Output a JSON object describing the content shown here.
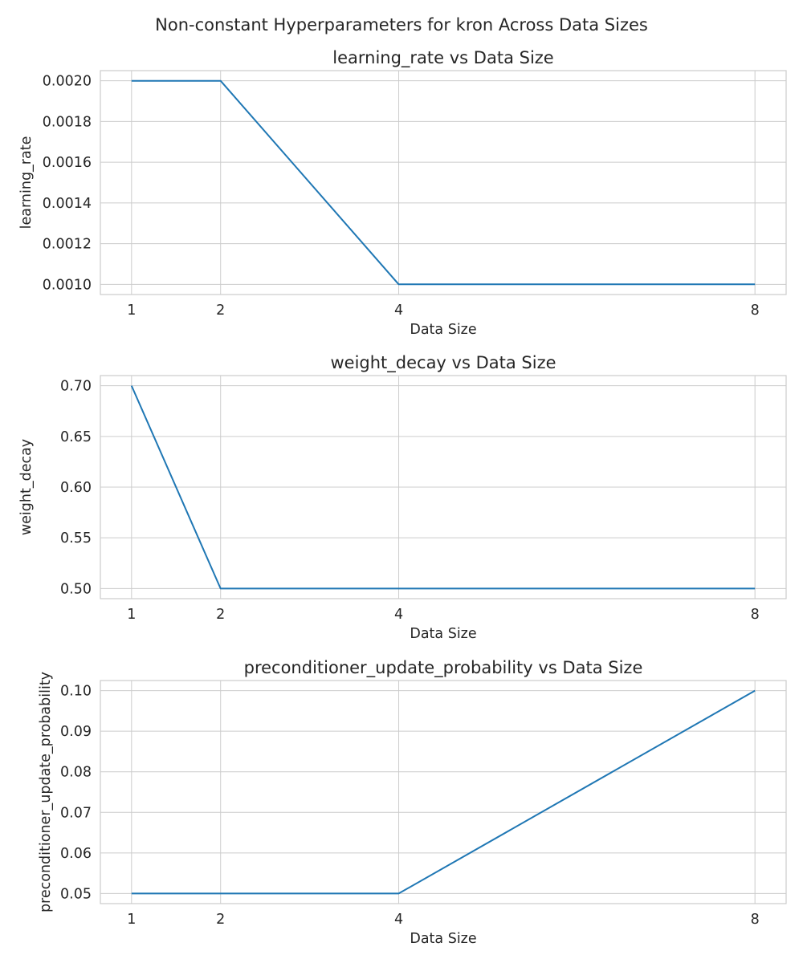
{
  "figure": {
    "suptitle": "Non-constant Hyperparameters for kron Across Data Sizes"
  },
  "style": {
    "line_color": "#1f77b4",
    "grid_color": "#cccccc",
    "text_color": "#262626"
  },
  "chart_data": [
    {
      "type": "line",
      "title": "learning_rate vs Data Size",
      "xlabel": "Data Size",
      "ylabel": "learning_rate",
      "x": [
        1,
        2,
        4,
        8
      ],
      "xticks": [
        1,
        2,
        4,
        8
      ],
      "xtick_labels": [
        "1",
        "2",
        "4",
        "8"
      ],
      "yticks": [
        0.001,
        0.0012,
        0.0014,
        0.0016,
        0.0018,
        0.002
      ],
      "ytick_labels": [
        "0.0010",
        "0.0012",
        "0.0014",
        "0.0016",
        "0.0018",
        "0.0020"
      ],
      "xlim": [
        0.65,
        8.35
      ],
      "ylim": [
        0.00095,
        0.00205
      ],
      "grid": true,
      "series": [
        {
          "values": [
            0.002,
            0.002,
            0.001,
            0.001
          ]
        }
      ]
    },
    {
      "type": "line",
      "title": "weight_decay vs Data Size",
      "xlabel": "Data Size",
      "ylabel": "weight_decay",
      "x": [
        1,
        2,
        4,
        8
      ],
      "xticks": [
        1,
        2,
        4,
        8
      ],
      "xtick_labels": [
        "1",
        "2",
        "4",
        "8"
      ],
      "yticks": [
        0.5,
        0.55,
        0.6,
        0.65,
        0.7
      ],
      "ytick_labels": [
        "0.50",
        "0.55",
        "0.60",
        "0.65",
        "0.70"
      ],
      "xlim": [
        0.65,
        8.35
      ],
      "ylim": [
        0.49,
        0.71
      ],
      "grid": true,
      "series": [
        {
          "values": [
            0.7,
            0.5,
            0.5,
            0.5
          ]
        }
      ]
    },
    {
      "type": "line",
      "title": "preconditioner_update_probability vs Data Size",
      "xlabel": "Data Size",
      "ylabel": "preconditioner_update_probability",
      "x": [
        1,
        2,
        4,
        8
      ],
      "xticks": [
        1,
        2,
        4,
        8
      ],
      "xtick_labels": [
        "1",
        "2",
        "4",
        "8"
      ],
      "yticks": [
        0.05,
        0.06,
        0.07,
        0.08,
        0.09,
        0.1
      ],
      "ytick_labels": [
        "0.05",
        "0.06",
        "0.07",
        "0.08",
        "0.09",
        "0.10"
      ],
      "xlim": [
        0.65,
        8.35
      ],
      "ylim": [
        0.0475,
        0.1025
      ],
      "grid": true,
      "series": [
        {
          "values": [
            0.05,
            0.05,
            0.05,
            0.1
          ]
        }
      ]
    }
  ]
}
